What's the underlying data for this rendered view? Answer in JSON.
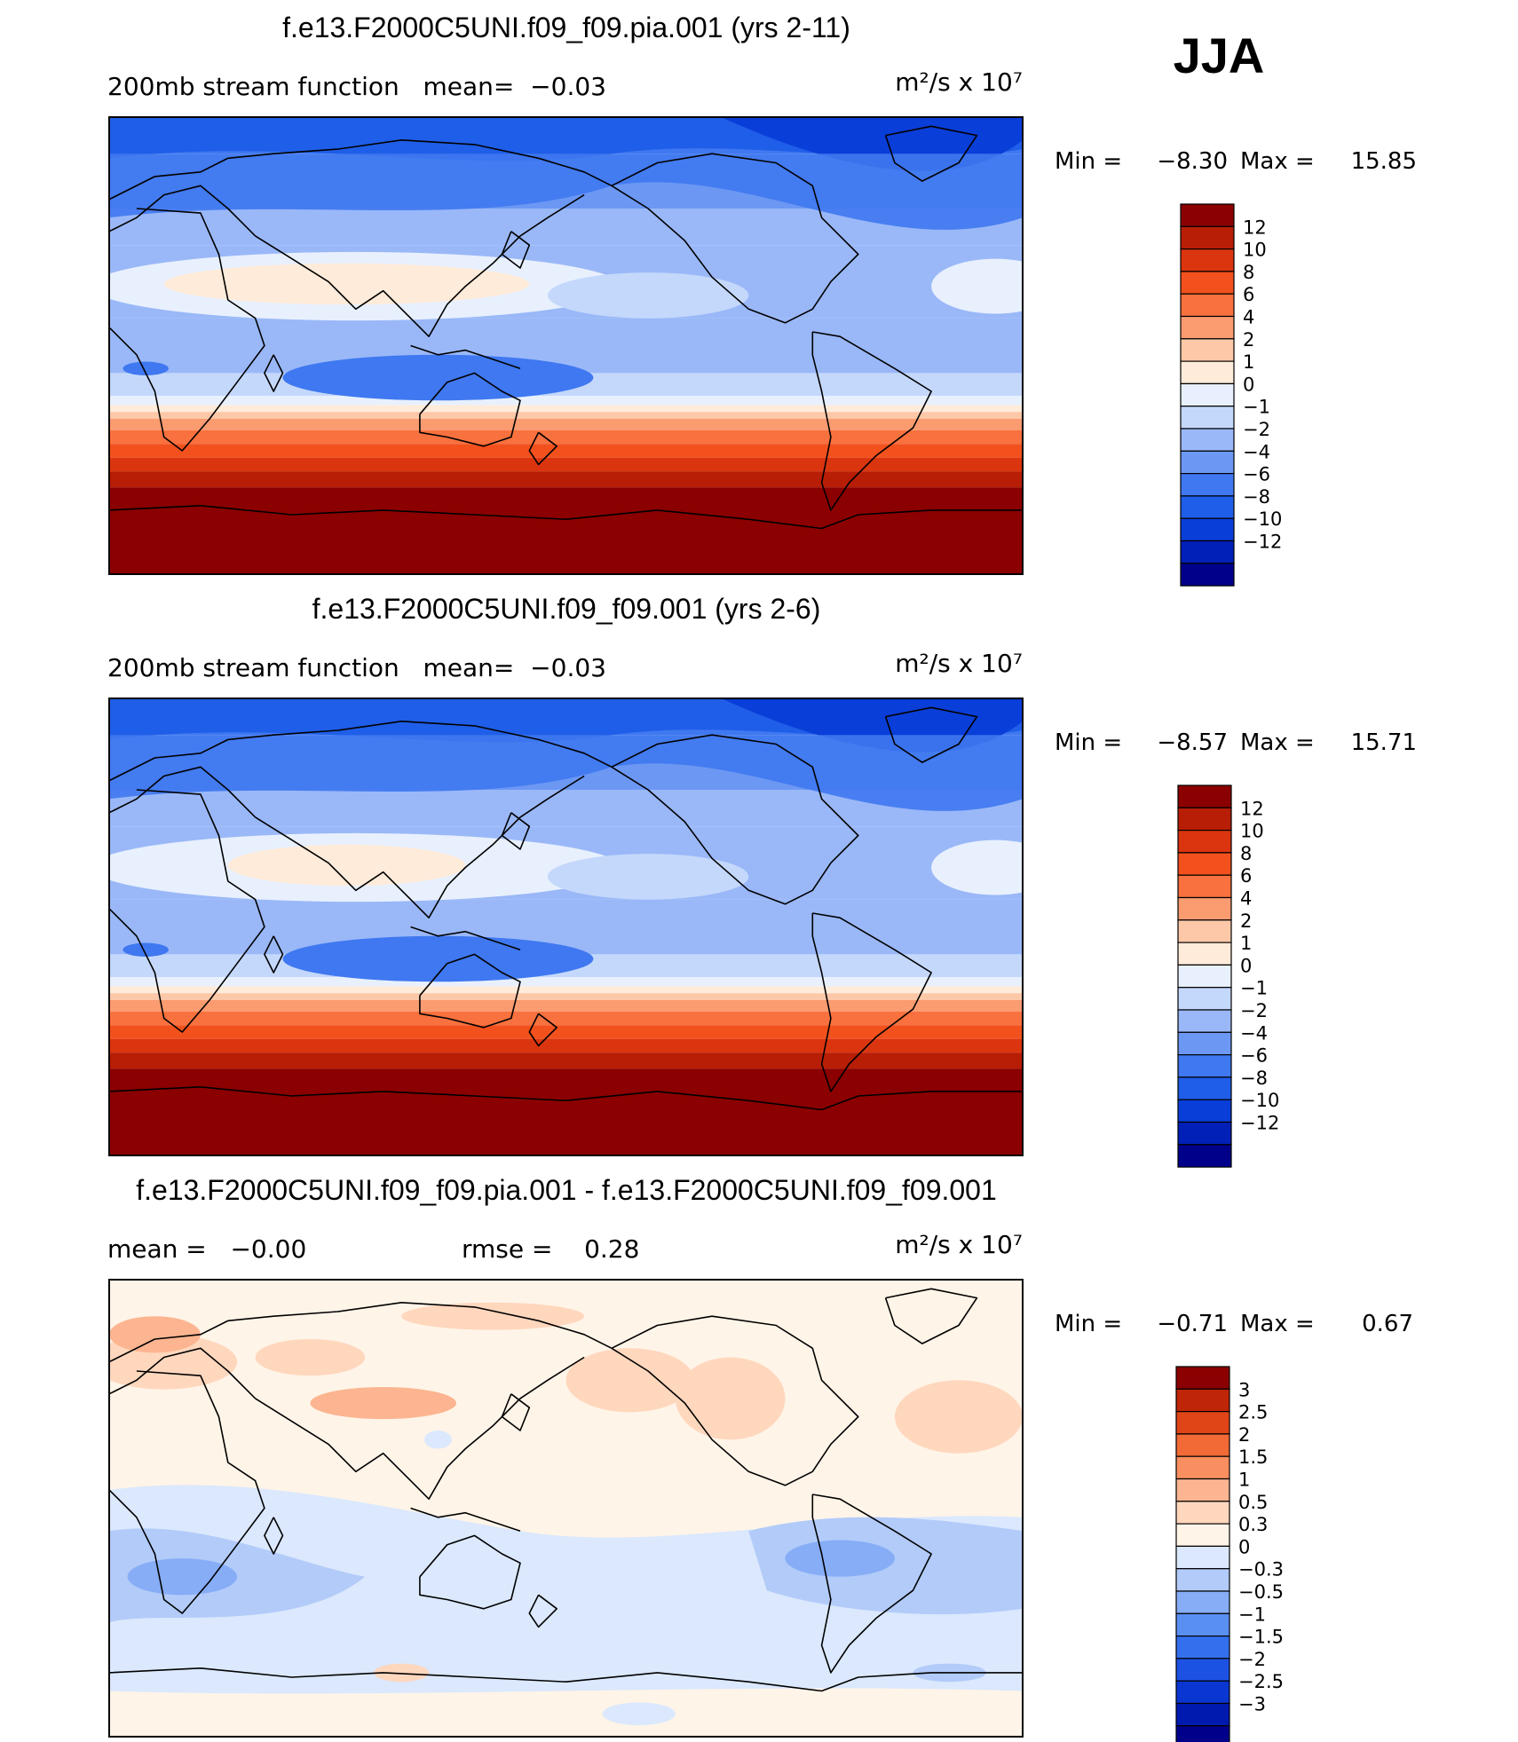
{
  "season": "JJA",
  "colors": {
    "map_border": "#000000",
    "coast": "#000000",
    "abs_scale": [
      "#00008b",
      "#0020b8",
      "#0a3ed8",
      "#1f5ee8",
      "#3f78f0",
      "#6c98f4",
      "#9ab8f8",
      "#c4d8fb",
      "#e8f0fe",
      "#ffebd9",
      "#fdc8a8",
      "#fb9b70",
      "#f9713e",
      "#f2511d",
      "#db3510",
      "#b81e05",
      "#8b0000"
    ],
    "diff_scale": [
      "#00008b",
      "#001ab0",
      "#0a36d2",
      "#1c52e4",
      "#3470ee",
      "#5a8ff2",
      "#86adf6",
      "#b2cbf9",
      "#dbe8fd",
      "#fff4e8",
      "#ffd7bd",
      "#fcb590",
      "#f98f60",
      "#f26a36",
      "#e04518",
      "#bf2608",
      "#8b0000"
    ]
  },
  "chart_data": [
    {
      "type": "heatmap",
      "title": "f.e13.F2000C5UNI.f09_f09.pia.001 (yrs 2-11)",
      "subtitle_left": "200mb stream function   mean=  −0.03",
      "units": "m²/s x 10⁷",
      "min_label": "Min =",
      "min_value": "−8.30",
      "max_label": "Max =",
      "max_value": "15.85",
      "colorbar_labels": [
        "12",
        "10",
        "8",
        "6",
        "4",
        "2",
        "1",
        "0",
        "−1",
        "−2",
        "−4",
        "−6",
        "−8",
        "−10",
        "−12"
      ],
      "field": "absolute",
      "variant": 0
    },
    {
      "type": "heatmap",
      "title": "f.e13.F2000C5UNI.f09_f09.001 (yrs 2-6)",
      "subtitle_left": "200mb stream function   mean=  −0.03",
      "units": "m²/s x 10⁷",
      "min_label": "Min =",
      "min_value": "−8.57",
      "max_label": "Max =",
      "max_value": "15.71",
      "colorbar_labels": [
        "12",
        "10",
        "8",
        "6",
        "4",
        "2",
        "1",
        "0",
        "−1",
        "−2",
        "−4",
        "−6",
        "−8",
        "−10",
        "−12"
      ],
      "field": "absolute",
      "variant": 1
    },
    {
      "type": "heatmap",
      "title": "f.e13.F2000C5UNI.f09_f09.pia.001 - f.e13.F2000C5UNI.f09_f09.001",
      "subtitle_left": "mean =   −0.00",
      "subtitle_mid": "rmse =    0.28",
      "units": "m²/s x 10⁷",
      "min_label": "Min =",
      "min_value": "−0.71",
      "max_label": "Max =",
      "max_value": "0.67",
      "colorbar_labels": [
        "3",
        "2.5",
        "2",
        "1.5",
        "1",
        "0.5",
        "0.3",
        "0",
        "−0.3",
        "−0.5",
        "−1",
        "−1.5",
        "−2",
        "−2.5",
        "−3"
      ],
      "field": "difference",
      "variant": 2
    }
  ]
}
